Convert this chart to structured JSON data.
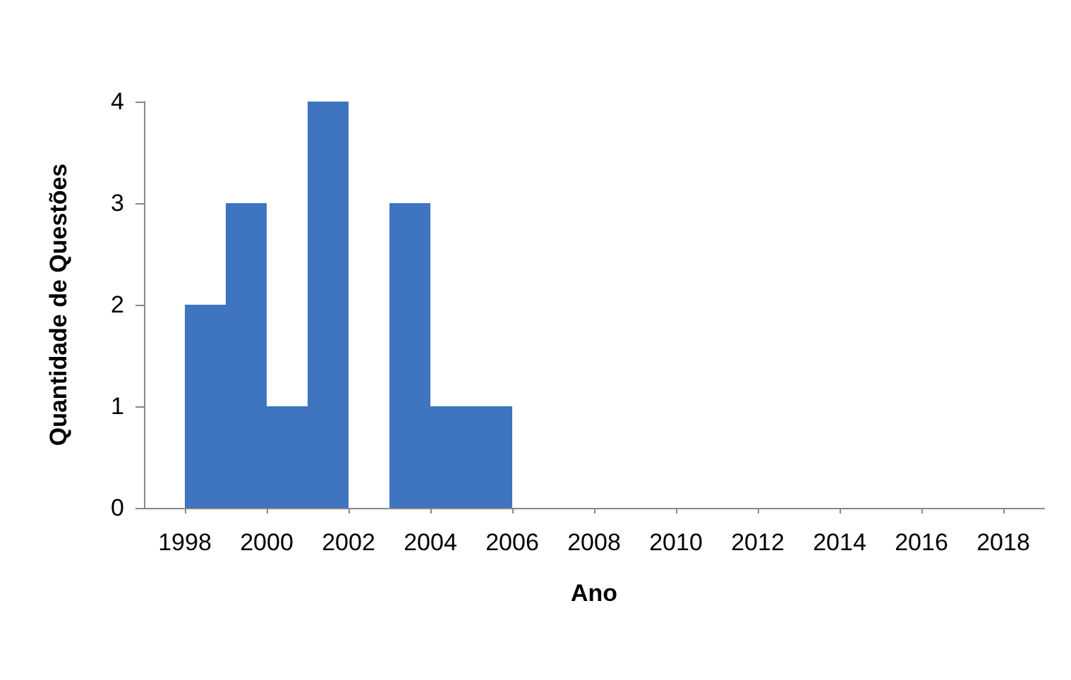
{
  "chart_data": {
    "type": "histogram",
    "xlabel": "Ano",
    "ylabel": "Quantidade de Questões",
    "bins": [
      1998,
      1999,
      2000,
      2001,
      2002,
      2003,
      2004,
      2005,
      2006
    ],
    "values": [
      2,
      3,
      1,
      4,
      0,
      3,
      1,
      1
    ],
    "color": "#3e74c0",
    "xlim": [
      1997,
      2019
    ],
    "xticks": [
      1998,
      2000,
      2002,
      2004,
      2006,
      2008,
      2010,
      2012,
      2014,
      2016,
      2018
    ],
    "ylim": [
      0,
      4
    ],
    "yticks": [
      0,
      1,
      2,
      3,
      4
    ],
    "grid": false
  }
}
